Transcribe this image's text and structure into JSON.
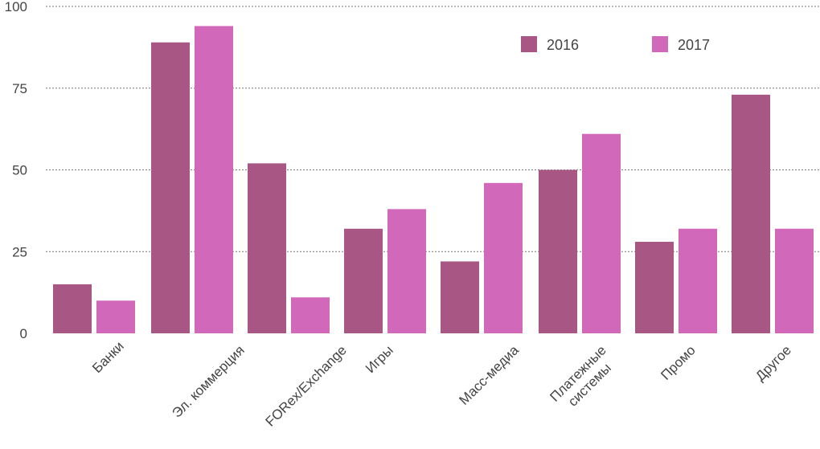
{
  "chart_data": {
    "type": "bar",
    "title": "",
    "xlabel": "",
    "ylabel": "",
    "ylim": [
      0,
      100
    ],
    "yticks": [
      0,
      25,
      50,
      75,
      100
    ],
    "grid": true,
    "legend_position": "top-right",
    "categories": [
      "Банки",
      "Эл. коммерция",
      "FORex/Exchange",
      "Игры",
      "Масс-медиа",
      "Платежные системы",
      "Промо",
      "Другое"
    ],
    "series": [
      {
        "name": "2016",
        "color": "#a85785",
        "values": [
          15,
          89,
          52,
          32,
          22,
          50,
          28,
          73
        ]
      },
      {
        "name": "2017",
        "color": "#d268b9",
        "values": [
          10,
          94,
          11,
          38,
          46,
          61,
          32,
          32
        ]
      }
    ]
  }
}
